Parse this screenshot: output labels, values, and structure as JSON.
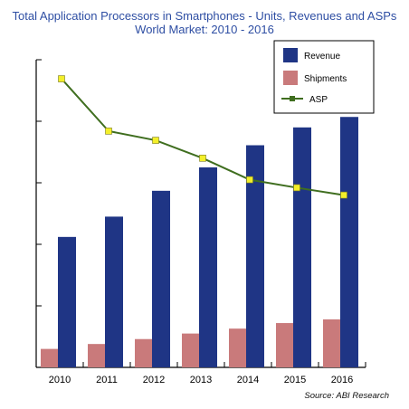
{
  "chart_data": {
    "type": "bar",
    "title": "Total Application Processors in Smartphones - Units, Revenues and ASPs",
    "subtitle": "World Market: 2010 - 2016",
    "categories": [
      "2010",
      "2011",
      "2012",
      "2013",
      "2014",
      "2015",
      "2016"
    ],
    "series": [
      {
        "name": "Revenue",
        "kind": "bar",
        "color": "#1f3585",
        "values": [
          2.12,
          2.45,
          2.87,
          3.25,
          3.61,
          3.9,
          4.07
        ]
      },
      {
        "name": "Shipments",
        "kind": "bar",
        "color": "#c97a7b",
        "values": [
          0.3,
          0.38,
          0.46,
          0.55,
          0.63,
          0.72,
          0.78
        ]
      },
      {
        "name": "ASP",
        "kind": "line",
        "color": "#3f6e1f",
        "marker_color": "#f3ef2a",
        "values": [
          4.69,
          3.84,
          3.69,
          3.4,
          3.05,
          2.92,
          2.8
        ]
      }
    ],
    "ylim": [
      0,
      5
    ],
    "y_ticks": 5,
    "ylabel": "",
    "xlabel": "",
    "grid": false,
    "legend_position": "top-right",
    "source": "Source: ABI Research"
  }
}
